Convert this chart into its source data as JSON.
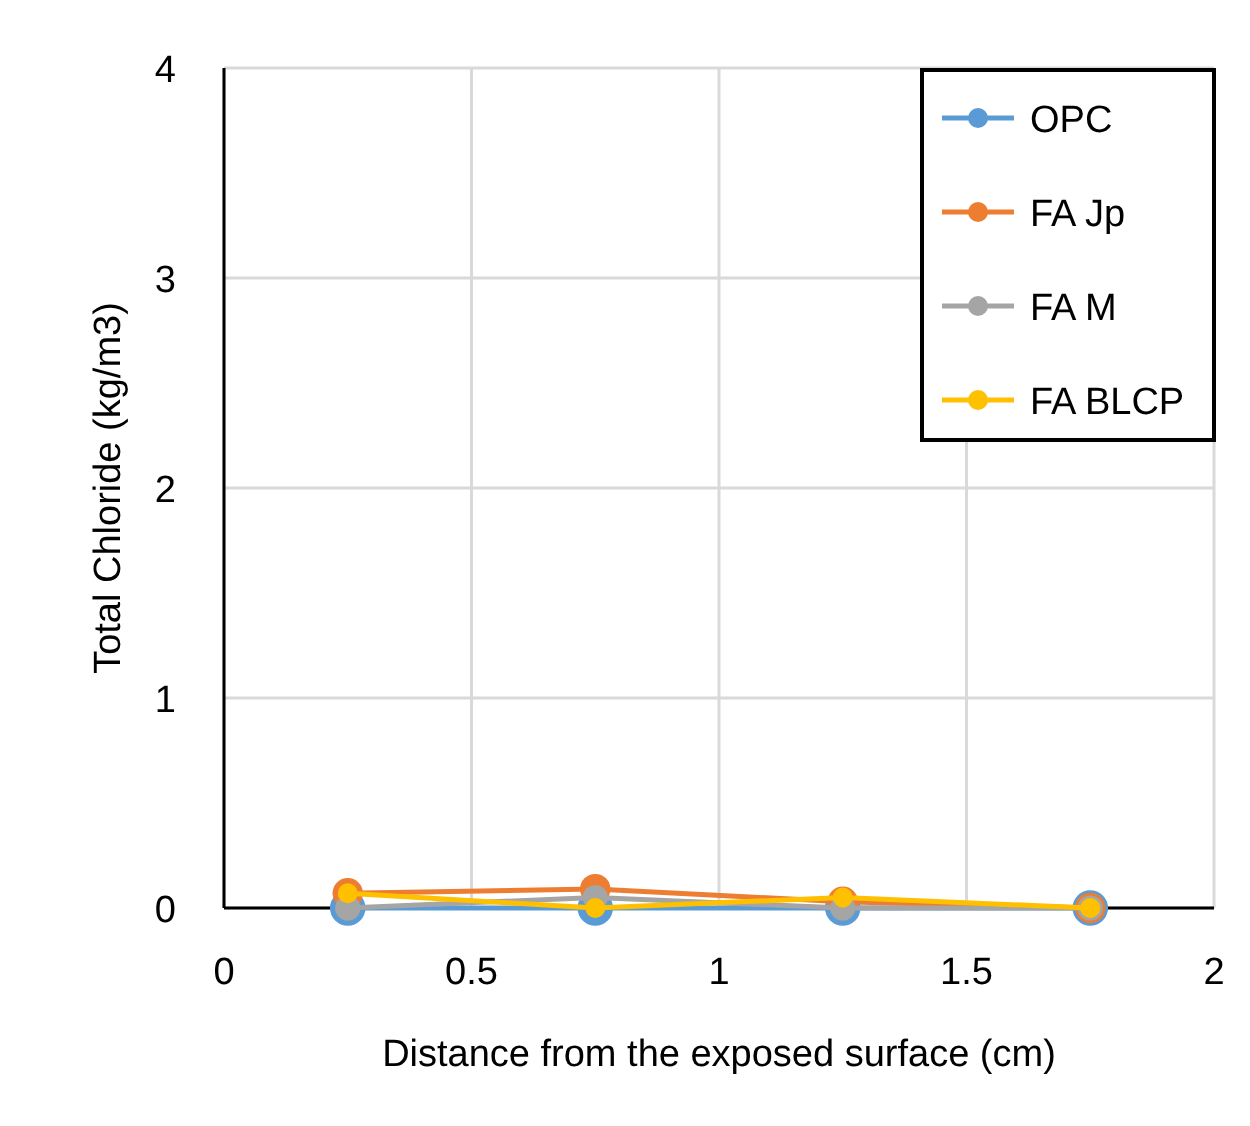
{
  "chart_data": {
    "type": "line",
    "xlabel": "Distance from the exposed surface (cm)",
    "ylabel": "Total Chloride (kg/m3)",
    "x": [
      0.25,
      0.75,
      1.25,
      1.75
    ],
    "series": [
      {
        "name": "OPC",
        "color": "#5b9bd5",
        "values": [
          0,
          0,
          0,
          0
        ]
      },
      {
        "name": "FA Jp",
        "color": "#ed7d31",
        "values": [
          0.07,
          0.09,
          0.03,
          0
        ]
      },
      {
        "name": "FA M",
        "color": "#a5a5a5",
        "values": [
          0,
          0.05,
          0,
          0
        ]
      },
      {
        "name": "FA BLCP",
        "color": "#ffc000",
        "values": [
          0.07,
          0,
          0.05,
          0
        ]
      }
    ],
    "xlim": [
      0,
      2
    ],
    "xticks": [
      0,
      0.5,
      1,
      1.5,
      2
    ],
    "ylim": [
      0,
      4
    ],
    "yticks": [
      0,
      1,
      2,
      3,
      4
    ],
    "grid": true,
    "legend": "top right",
    "marker": "circle"
  }
}
